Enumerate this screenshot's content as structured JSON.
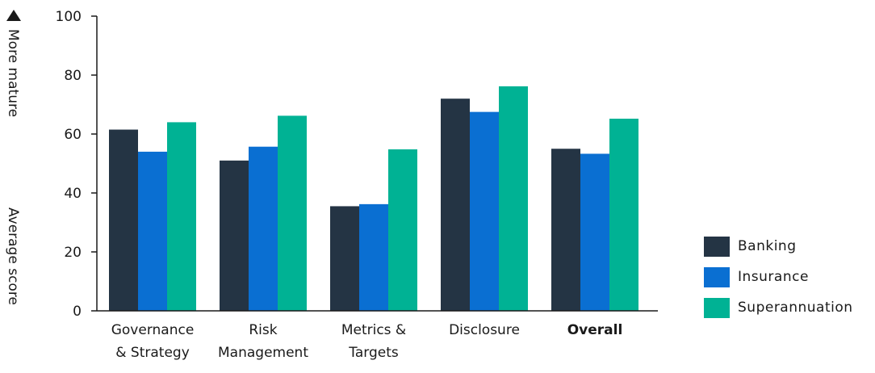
{
  "chart_data": {
    "type": "bar",
    "categories": [
      {
        "lines": [
          "Governance",
          "& Strategy"
        ],
        "bold": false
      },
      {
        "lines": [
          "Risk",
          "Management"
        ],
        "bold": false
      },
      {
        "lines": [
          "Metrics &",
          "Targets"
        ],
        "bold": false
      },
      {
        "lines": [
          "Disclosure"
        ],
        "bold": false
      },
      {
        "lines": [
          "Overall"
        ],
        "bold": true
      }
    ],
    "series": [
      {
        "name": "Banking",
        "color": "#243444",
        "values": [
          61.5,
          51,
          35.5,
          72,
          55
        ]
      },
      {
        "name": "Insurance",
        "color": "#0a6fd2",
        "values": [
          54,
          55.7,
          36.2,
          67.5,
          53.3
        ]
      },
      {
        "name": "Superannuation",
        "color": "#00b294",
        "values": [
          64,
          66.2,
          54.8,
          76.2,
          65.2
        ]
      }
    ],
    "ylim": [
      0,
      100
    ],
    "yticks": [
      0,
      20,
      40,
      60,
      80,
      100
    ],
    "y_axis_top_label": "More mature",
    "y_axis_label": "Average score",
    "arrow_icon": "up-triangle-icon",
    "legend_position": "right",
    "grid": false
  }
}
